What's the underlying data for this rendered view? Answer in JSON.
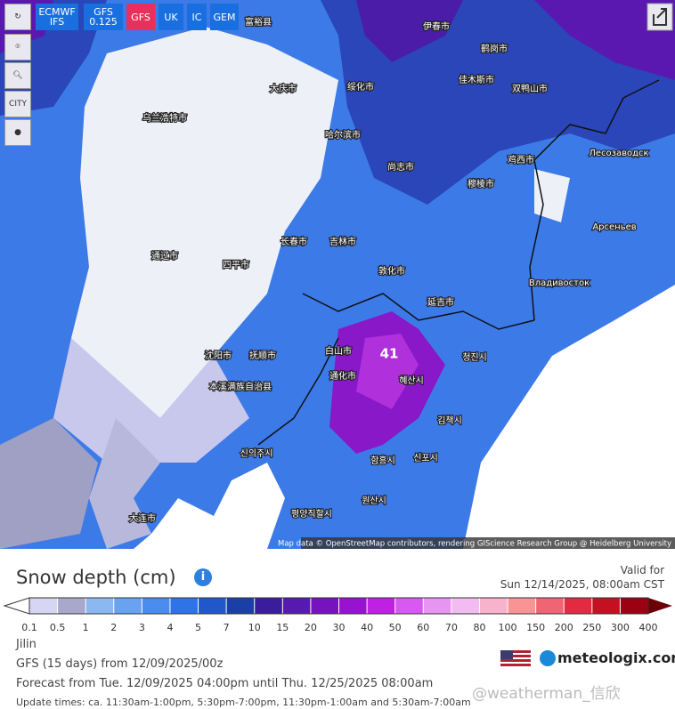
{
  "toolbar": {
    "models": [
      "ECMWF IFS",
      "GFS 0.125",
      "GFS",
      "UK",
      "IC",
      "GEM"
    ],
    "city": "CITY"
  },
  "map": {
    "labels": [
      "富裕县",
      "伊春市",
      "鹤岗市",
      "佳木斯市",
      "双鸭山市",
      "绥化市",
      "大庆市",
      "哈尔滨市",
      "尚志市",
      "鸡西市",
      "穆棱市",
      "Лесозаводск",
      "Арсеньев",
      "吉林市",
      "长春市",
      "四平市",
      "敦化市",
      "延吉市",
      "Владивосток",
      "沈阳市",
      "抚顺市",
      "本溪满族自治县",
      "通化市",
      "白山市",
      "혜산시",
      "청진시",
      "김책시",
      "함흥시",
      "신포시",
      "신의주시",
      "원산시",
      "평양직할시",
      "大连市",
      "乌兰浩特市",
      "通辽市",
      "41"
    ],
    "attribution": "Map data © OpenStreetMap contributors, rendering GIScience Research Group @ Heidelberg University"
  },
  "panel": {
    "title": "Snow depth (cm)",
    "valid_label": "Valid for",
    "valid_time": "Sun 12/14/2025, 08:00am CST",
    "legend": {
      "ticks": [
        "0.1",
        "0.5",
        "1",
        "2",
        "3",
        "4",
        "5",
        "7",
        "10",
        "15",
        "20",
        "30",
        "40",
        "50",
        "60",
        "70",
        "80",
        "100",
        "150",
        "200",
        "250",
        "300",
        "400"
      ],
      "colors": [
        "#d6d6f2",
        "#a8a8cc",
        "#8cb8f2",
        "#6aa2f2",
        "#4a8cf0",
        "#2e74e8",
        "#2058cc",
        "#1a40a8",
        "#3a1c9c",
        "#561ab0",
        "#7612c0",
        "#9812d2",
        "#c020e4",
        "#d858f2",
        "#e894f2",
        "#f2bcf2",
        "#f8b2cc",
        "#f89494",
        "#f06474",
        "#e42a40",
        "#c41020",
        "#9c0012",
        "#6c0008"
      ]
    },
    "region": "Jilin",
    "run": "GFS  (15 days) from 12/09/2025/00z",
    "forecast": "Forecast from Tue. 12/09/2025 04:00pm until Thu. 12/25/2025 08:00am",
    "updates": "Update times: ca. 11:30am-1:00pm, 5:30pm-7:00pm, 11:30pm-1:00am and 5:30am-7:00am",
    "brand": "meteologix.com",
    "watermark": "@weatherman_信欣"
  }
}
